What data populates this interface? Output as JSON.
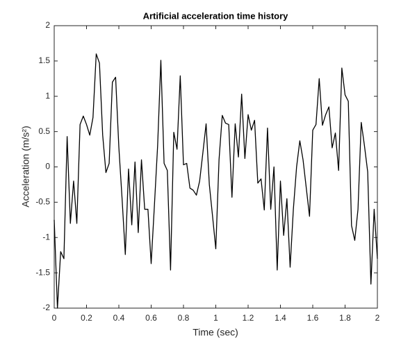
{
  "chart_data": {
    "type": "line",
    "title": "Artificial acceleration time history",
    "xlabel": "Time (sec)",
    "ylabel": "Acceleration (m/s²)",
    "x": [
      0,
      0.02,
      0.04,
      0.06,
      0.08,
      0.1,
      0.12,
      0.14,
      0.16,
      0.18,
      0.2,
      0.22,
      0.24,
      0.26,
      0.28,
      0.3,
      0.32,
      0.34,
      0.36,
      0.38,
      0.4,
      0.42,
      0.44,
      0.46,
      0.48,
      0.5,
      0.52,
      0.54,
      0.56,
      0.58,
      0.6,
      0.62,
      0.64,
      0.66,
      0.68,
      0.7,
      0.72,
      0.74,
      0.76,
      0.78,
      0.8,
      0.82,
      0.84,
      0.86,
      0.88,
      0.9,
      0.92,
      0.94,
      0.96,
      0.98,
      1,
      1.02,
      1.04,
      1.06,
      1.08,
      1.1,
      1.12,
      1.14,
      1.16,
      1.18,
      1.2,
      1.22,
      1.24,
      1.26,
      1.28,
      1.3,
      1.32,
      1.34,
      1.36,
      1.38,
      1.4,
      1.42,
      1.44,
      1.46,
      1.48,
      1.5,
      1.52,
      1.54,
      1.56,
      1.58,
      1.6,
      1.62,
      1.64,
      1.66,
      1.68,
      1.7,
      1.72,
      1.74,
      1.76,
      1.78,
      1.8,
      1.82,
      1.84,
      1.86,
      1.88,
      1.9,
      1.92,
      1.94,
      1.96,
      1.98,
      2
    ],
    "series": [
      {
        "color": "#000000",
        "values": [
          -0.75,
          -2.0,
          -1.2,
          -1.3,
          0.43,
          -0.8,
          -0.2,
          -0.8,
          0.6,
          0.72,
          0.6,
          0.45,
          0.7,
          1.6,
          1.47,
          0.45,
          -0.08,
          0.05,
          1.2,
          1.27,
          0.28,
          -0.45,
          -1.24,
          -0.03,
          -0.82,
          0.07,
          -0.93,
          0.1,
          -0.6,
          -0.6,
          -1.37,
          -0.55,
          0.3,
          1.51,
          0.05,
          -0.05,
          -1.46,
          0.49,
          0.25,
          1.29,
          0.03,
          0.05,
          -0.3,
          -0.33,
          -0.4,
          -0.2,
          0.2,
          0.61,
          -0.25,
          -0.7,
          -1.16,
          0.1,
          0.73,
          0.62,
          0.6,
          -0.43,
          0.61,
          0.14,
          1.03,
          0.12,
          0.74,
          0.52,
          0.66,
          -0.23,
          -0.17,
          -0.61,
          0.55,
          -0.6,
          0.0,
          -1.46,
          -0.2,
          -0.97,
          -0.45,
          -1.42,
          -0.6,
          0.0,
          0.37,
          0.1,
          -0.3,
          -0.7,
          0.52,
          0.6,
          1.25,
          0.59,
          0.74,
          0.85,
          0.27,
          0.48,
          -0.05,
          1.4,
          1.02,
          0.93,
          -0.83,
          -1.04,
          -0.6,
          0.63,
          0.3,
          -0.07,
          -1.66,
          -0.6,
          -1.3
        ]
      }
    ],
    "xlim": [
      0,
      2
    ],
    "xticks": [
      0,
      0.2,
      0.4,
      0.6,
      0.8,
      1,
      1.2,
      1.4,
      1.6,
      1.8,
      2
    ],
    "ylim": [
      -2,
      2
    ],
    "yticks": [
      -2,
      -1.5,
      -1,
      -0.5,
      0,
      0.5,
      1,
      1.5,
      2
    ],
    "grid": false
  }
}
